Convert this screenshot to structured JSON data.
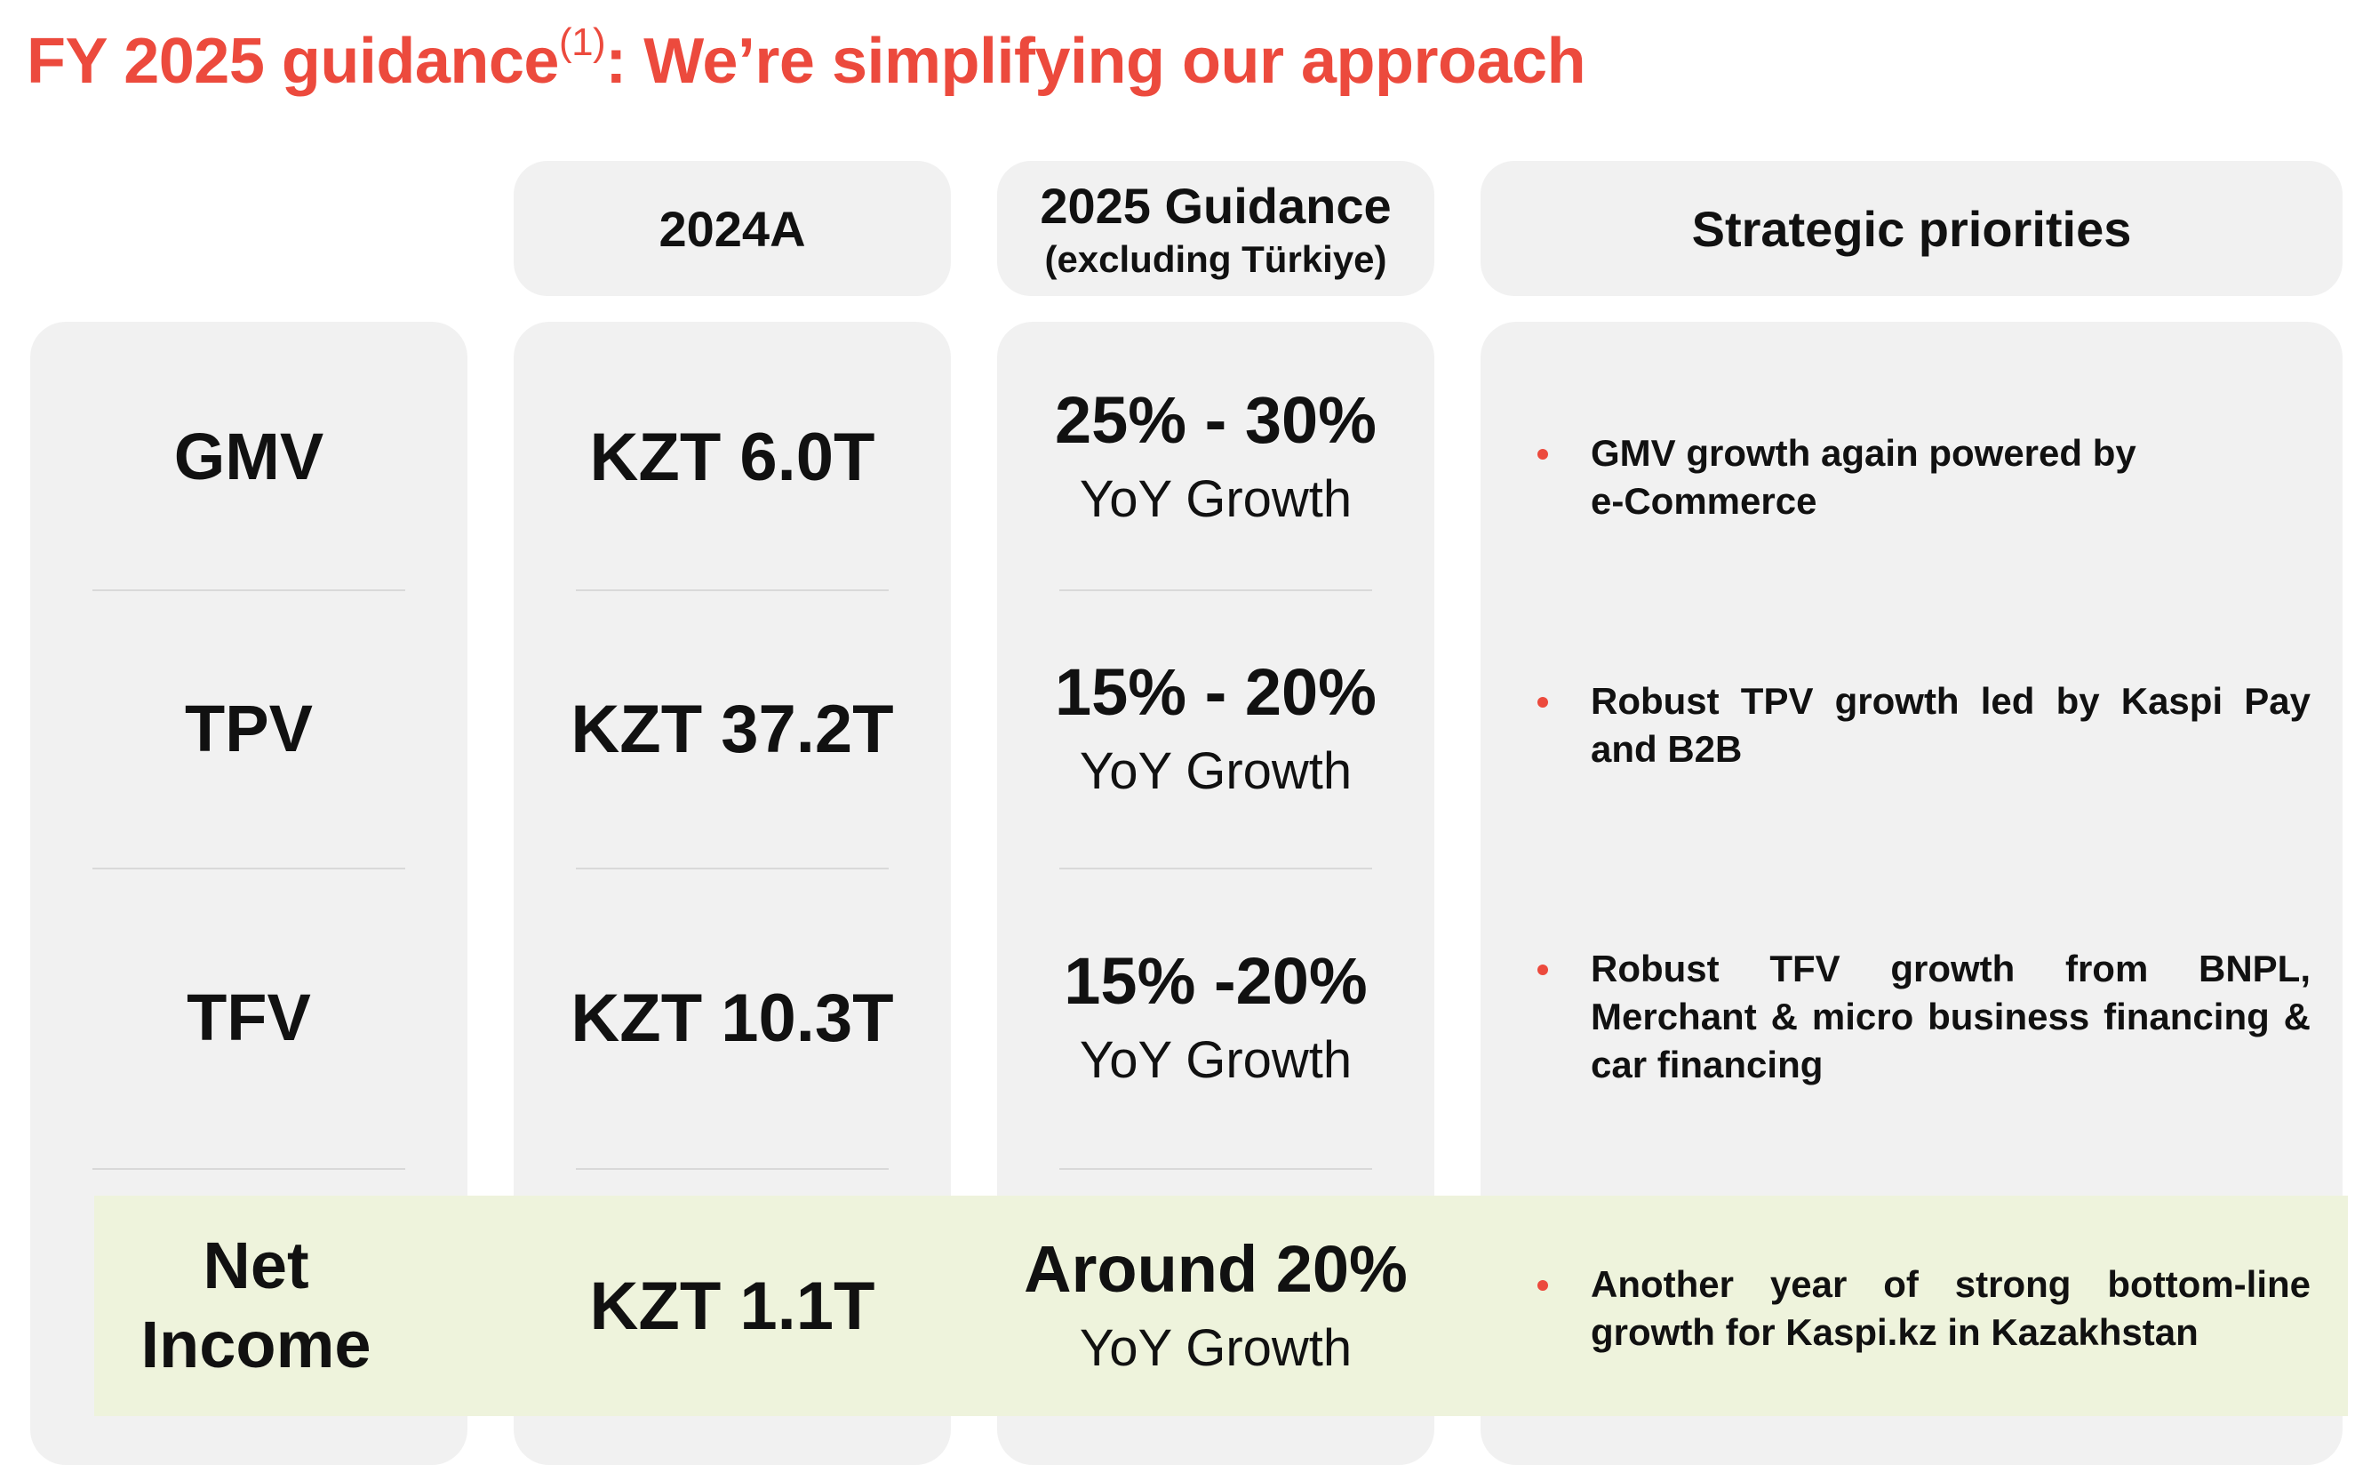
{
  "title": {
    "main": "FY 2025 guidance",
    "footnote": "(1)",
    "rest": ": We’re simplifying our approach"
  },
  "headers": {
    "actual": "2024A",
    "guidance": "2025 Guidance",
    "guidance_sub": "(excluding Türkiye)",
    "priorities": "Strategic priorities"
  },
  "rows": [
    {
      "metric": "GMV",
      "actual": "KZT 6.0T",
      "guidance": "25% - 30%",
      "guidance_sub": "YoY Growth",
      "priority": "GMV growth again powered by e-Commerce"
    },
    {
      "metric": "TPV",
      "actual": "KZT 37.2T",
      "guidance": "15% - 20%",
      "guidance_sub": "YoY Growth",
      "priority": "Robust TPV growth led by Kaspi Pay and B2B"
    },
    {
      "metric": "TFV",
      "actual": "KZT 10.3T",
      "guidance": "15% -20%",
      "guidance_sub": "YoY Growth",
      "priority": "Robust TFV growth from BNPL, Merchant & micro business financing & car financing"
    },
    {
      "metric": "Net Income",
      "actual": "KZT 1.1T",
      "guidance": "Around 20%",
      "guidance_sub": "YoY Growth",
      "priority": "Another year of strong bottom-line growth for Kaspi.kz in Kazakhstan"
    }
  ],
  "colors": {
    "accent": "#ec4a3d",
    "panel": "#f1f1f1",
    "highlight": "#eef3dc"
  }
}
